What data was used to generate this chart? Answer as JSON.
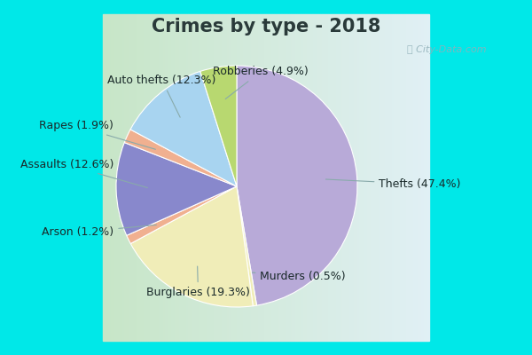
{
  "title": "Crimes by type - 2018",
  "title_color": "#2a3a3a",
  "slices": [
    {
      "label": "Thefts",
      "pct": 47.4,
      "color": "#b8aad8"
    },
    {
      "label": "Murders",
      "pct": 0.5,
      "color": "#f0edb8"
    },
    {
      "label": "Burglaries",
      "pct": 19.3,
      "color": "#f0edb8"
    },
    {
      "label": "Arson",
      "pct": 1.2,
      "color": "#f0b090"
    },
    {
      "label": "Assaults",
      "pct": 12.6,
      "color": "#8888cc"
    },
    {
      "label": "Rapes",
      "pct": 1.9,
      "color": "#f0b090"
    },
    {
      "label": "Auto thefts",
      "pct": 12.3,
      "color": "#a8d4f0"
    },
    {
      "label": "Robberies",
      "pct": 4.9,
      "color": "#b8d870"
    }
  ],
  "bg_top_color": "#00e8e8",
  "bg_main_color_left": "#c8e8c8",
  "bg_main_color_right": "#e8f0f8",
  "title_fontsize": 15,
  "label_fontsize": 9,
  "startangle": 90,
  "annotations": [
    {
      "label": "Thefts (47.4%)",
      "xt": 1.18,
      "yt": 0.02,
      "ha": "left"
    },
    {
      "label": "Murders (0.5%)",
      "xt": 0.55,
      "yt": -0.75,
      "ha": "center"
    },
    {
      "label": "Burglaries (19.3%)",
      "xt": -0.32,
      "yt": -0.88,
      "ha": "center"
    },
    {
      "label": "Arson (1.2%)",
      "xt": -1.02,
      "yt": -0.38,
      "ha": "right"
    },
    {
      "label": "Assaults (12.6%)",
      "xt": -1.02,
      "yt": 0.18,
      "ha": "right"
    },
    {
      "label": "Rapes (1.9%)",
      "xt": -1.02,
      "yt": 0.5,
      "ha": "right"
    },
    {
      "label": "Auto thefts (12.3%)",
      "xt": -0.62,
      "yt": 0.88,
      "ha": "center"
    },
    {
      "label": "Robberies (4.9%)",
      "xt": 0.2,
      "yt": 0.95,
      "ha": "center"
    }
  ]
}
